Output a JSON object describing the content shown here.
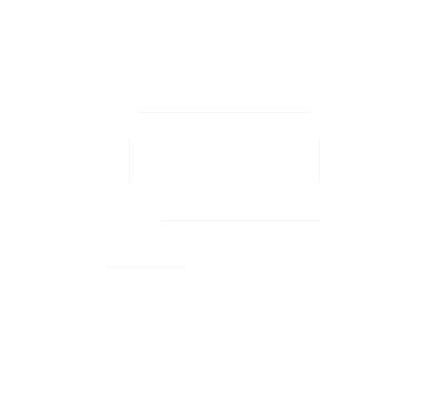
{
  "window": {
    "background_color": "#ffffff"
  }
}
